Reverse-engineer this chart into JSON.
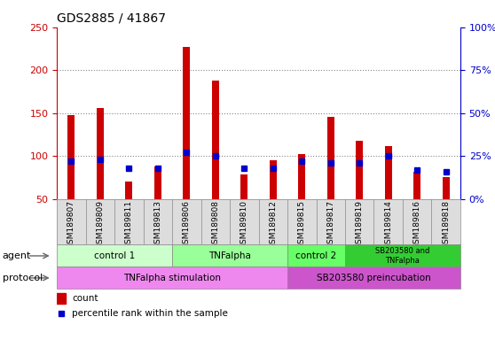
{
  "title": "GDS2885 / 41867",
  "samples": [
    "GSM189807",
    "GSM189809",
    "GSM189811",
    "GSM189813",
    "GSM189806",
    "GSM189808",
    "GSM189810",
    "GSM189812",
    "GSM189815",
    "GSM189817",
    "GSM189819",
    "GSM189814",
    "GSM189816",
    "GSM189818"
  ],
  "counts": [
    148,
    156,
    70,
    88,
    227,
    188,
    78,
    95,
    102,
    146,
    118,
    112,
    82,
    75
  ],
  "percentiles_right": [
    22,
    23,
    18,
    18,
    27,
    25,
    18,
    18,
    22,
    21,
    21,
    25,
    17,
    16
  ],
  "bar_color": "#cc0000",
  "pct_color": "#0000cc",
  "ylim_left": [
    50,
    250
  ],
  "ylim_right": [
    0,
    100
  ],
  "yticks_left": [
    50,
    100,
    150,
    200,
    250
  ],
  "ytick_labels_left": [
    "50",
    "100",
    "150",
    "200",
    "250"
  ],
  "yticks_right": [
    0,
    25,
    50,
    75,
    100
  ],
  "ytick_labels_right": [
    "0%",
    "25%",
    "50%",
    "75%",
    "100%"
  ],
  "agent_groups": [
    {
      "label": "control 1",
      "start": 0,
      "end": 4,
      "color": "#ccffcc"
    },
    {
      "label": "TNFalpha",
      "start": 4,
      "end": 8,
      "color": "#99ff99"
    },
    {
      "label": "control 2",
      "start": 8,
      "end": 10,
      "color": "#66ff66"
    },
    {
      "label": "SB203580 and\nTNFalpha",
      "start": 10,
      "end": 14,
      "color": "#33cc33"
    }
  ],
  "protocol_groups": [
    {
      "label": "TNFalpha stimulation",
      "start": 0,
      "end": 8,
      "color": "#ee88ee"
    },
    {
      "label": "SB203580 preincubation",
      "start": 8,
      "end": 14,
      "color": "#cc55cc"
    }
  ],
  "grid_color": "#888888",
  "left_axis_color": "#cc0000",
  "right_axis_color": "#0000cc",
  "bar_width": 0.25,
  "pct_square_size": 6
}
